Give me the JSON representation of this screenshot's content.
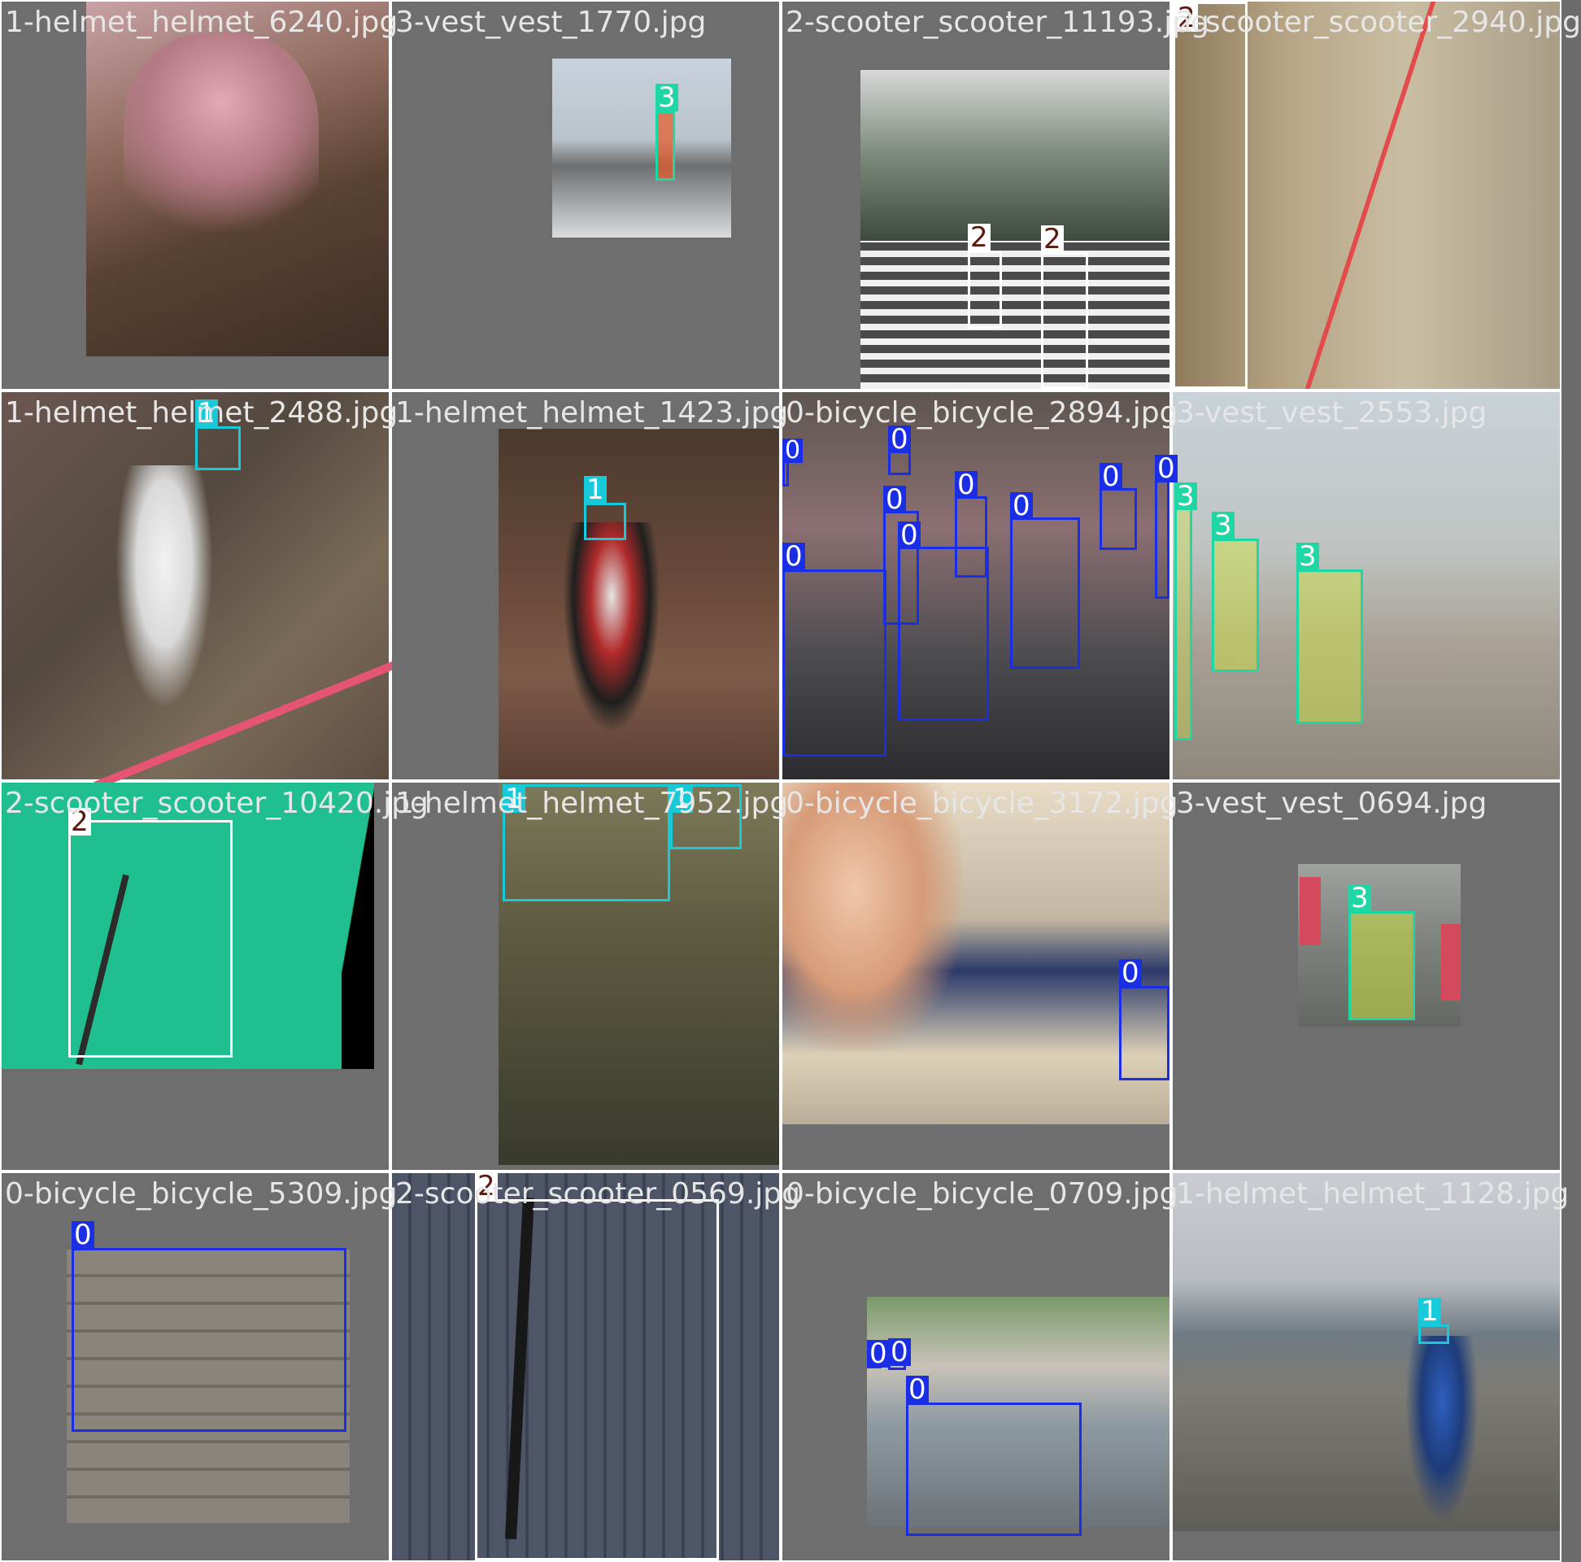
{
  "colors": {
    "tile_bg": "#6e6e6e",
    "class_0": "#1a2ee6",
    "class_1": "#18c9d9",
    "class_2": "#ffffff",
    "class_3": "#1fd6a5",
    "label_2_text": "#5a1a0f"
  },
  "tiles": [
    {
      "filename": "1-helmet_helmet_6240.jpg",
      "boxes": []
    },
    {
      "filename": "3-vest_vest_1770.jpg",
      "boxes": [
        {
          "label": "3"
        }
      ]
    },
    {
      "filename": "2-scooter_scooter_11193.jpg",
      "boxes": [
        {
          "label": "2"
        },
        {
          "label": "2"
        }
      ]
    },
    {
      "filename": "2-scooter_scooter_2940.jpg",
      "boxes": [
        {
          "label": "2"
        }
      ]
    },
    {
      "filename": "1-helmet_helmet_2488.jpg",
      "boxes": [
        {
          "label": "1"
        }
      ]
    },
    {
      "filename": "1-helmet_helmet_1423.jpg",
      "boxes": [
        {
          "label": "1"
        }
      ]
    },
    {
      "filename": "0-bicycle_bicycle_2894.jpg",
      "boxes": [
        {
          "label": "0"
        },
        {
          "label": "0"
        },
        {
          "label": "0"
        },
        {
          "label": "0"
        },
        {
          "label": "0"
        },
        {
          "label": "0"
        },
        {
          "label": "0"
        },
        {
          "label": "0"
        },
        {
          "label": "0"
        }
      ]
    },
    {
      "filename": "3-vest_vest_2553.jpg",
      "boxes": [
        {
          "label": "3"
        },
        {
          "label": "3"
        },
        {
          "label": "3"
        }
      ]
    },
    {
      "filename": "2-scooter_scooter_10420.jpg",
      "boxes": [
        {
          "label": "2"
        }
      ]
    },
    {
      "filename": "1-helmet_helmet_7952.jpg",
      "boxes": [
        {
          "label": "1"
        },
        {
          "label": "1"
        }
      ]
    },
    {
      "filename": "0-bicycle_bicycle_3172.jpg",
      "boxes": [
        {
          "label": "0"
        }
      ]
    },
    {
      "filename": "3-vest_vest_0694.jpg",
      "boxes": [
        {
          "label": "3"
        }
      ]
    },
    {
      "filename": "0-bicycle_bicycle_5309.jpg",
      "boxes": [
        {
          "label": "0"
        }
      ]
    },
    {
      "filename": "2-scooter_scooter_0569.jpg",
      "boxes": [
        {
          "label": "2"
        }
      ]
    },
    {
      "filename": "0-bicycle_bicycle_0709.jpg",
      "boxes": [
        {
          "label": "0"
        },
        {
          "label": "0"
        },
        {
          "label": "0"
        }
      ]
    },
    {
      "filename": "1-helmet_helmet_1128.jpg",
      "boxes": [
        {
          "label": "1"
        }
      ]
    }
  ]
}
